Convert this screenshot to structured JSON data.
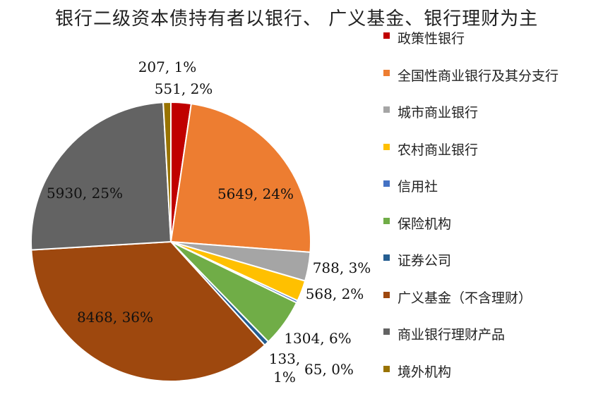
{
  "chart_data": {
    "type": "pie",
    "title": "银行二级资本债持有者以银行、 广义基金、银行理财为主",
    "legend_position": "right",
    "slices": [
      {
        "name": "政策性银行",
        "value": 551,
        "label": "551, 2%",
        "color": "#C00000"
      },
      {
        "name": "全国性商业银行及其分支行",
        "value": 5649,
        "label": "5649, 24%",
        "color": "#ED7D31"
      },
      {
        "name": "城市商业银行",
        "value": 788,
        "label": "788, 3%",
        "color": "#A5A5A5"
      },
      {
        "name": "农村商业银行",
        "value": 568,
        "label": "568, 2%",
        "color": "#FFC000"
      },
      {
        "name": "信用社",
        "value": 65,
        "label": "65, 0%",
        "color": "#4472C4"
      },
      {
        "name": "保险机构",
        "value": 1304,
        "label": "1304, 6%",
        "color": "#70AD47"
      },
      {
        "name": "证券公司",
        "value": 133,
        "label": "133,\n1%",
        "color": "#255E91"
      },
      {
        "name": "广义基金（不含理财）",
        "value": 8468,
        "label": "8468, 36%",
        "color": "#9E480E"
      },
      {
        "name": "商业银行理财产品",
        "value": 5930,
        "label": "5930, 25%",
        "color": "#636363"
      },
      {
        "name": "境外机构",
        "value": 207,
        "label": "207, 1%",
        "color": "#997300"
      }
    ]
  }
}
